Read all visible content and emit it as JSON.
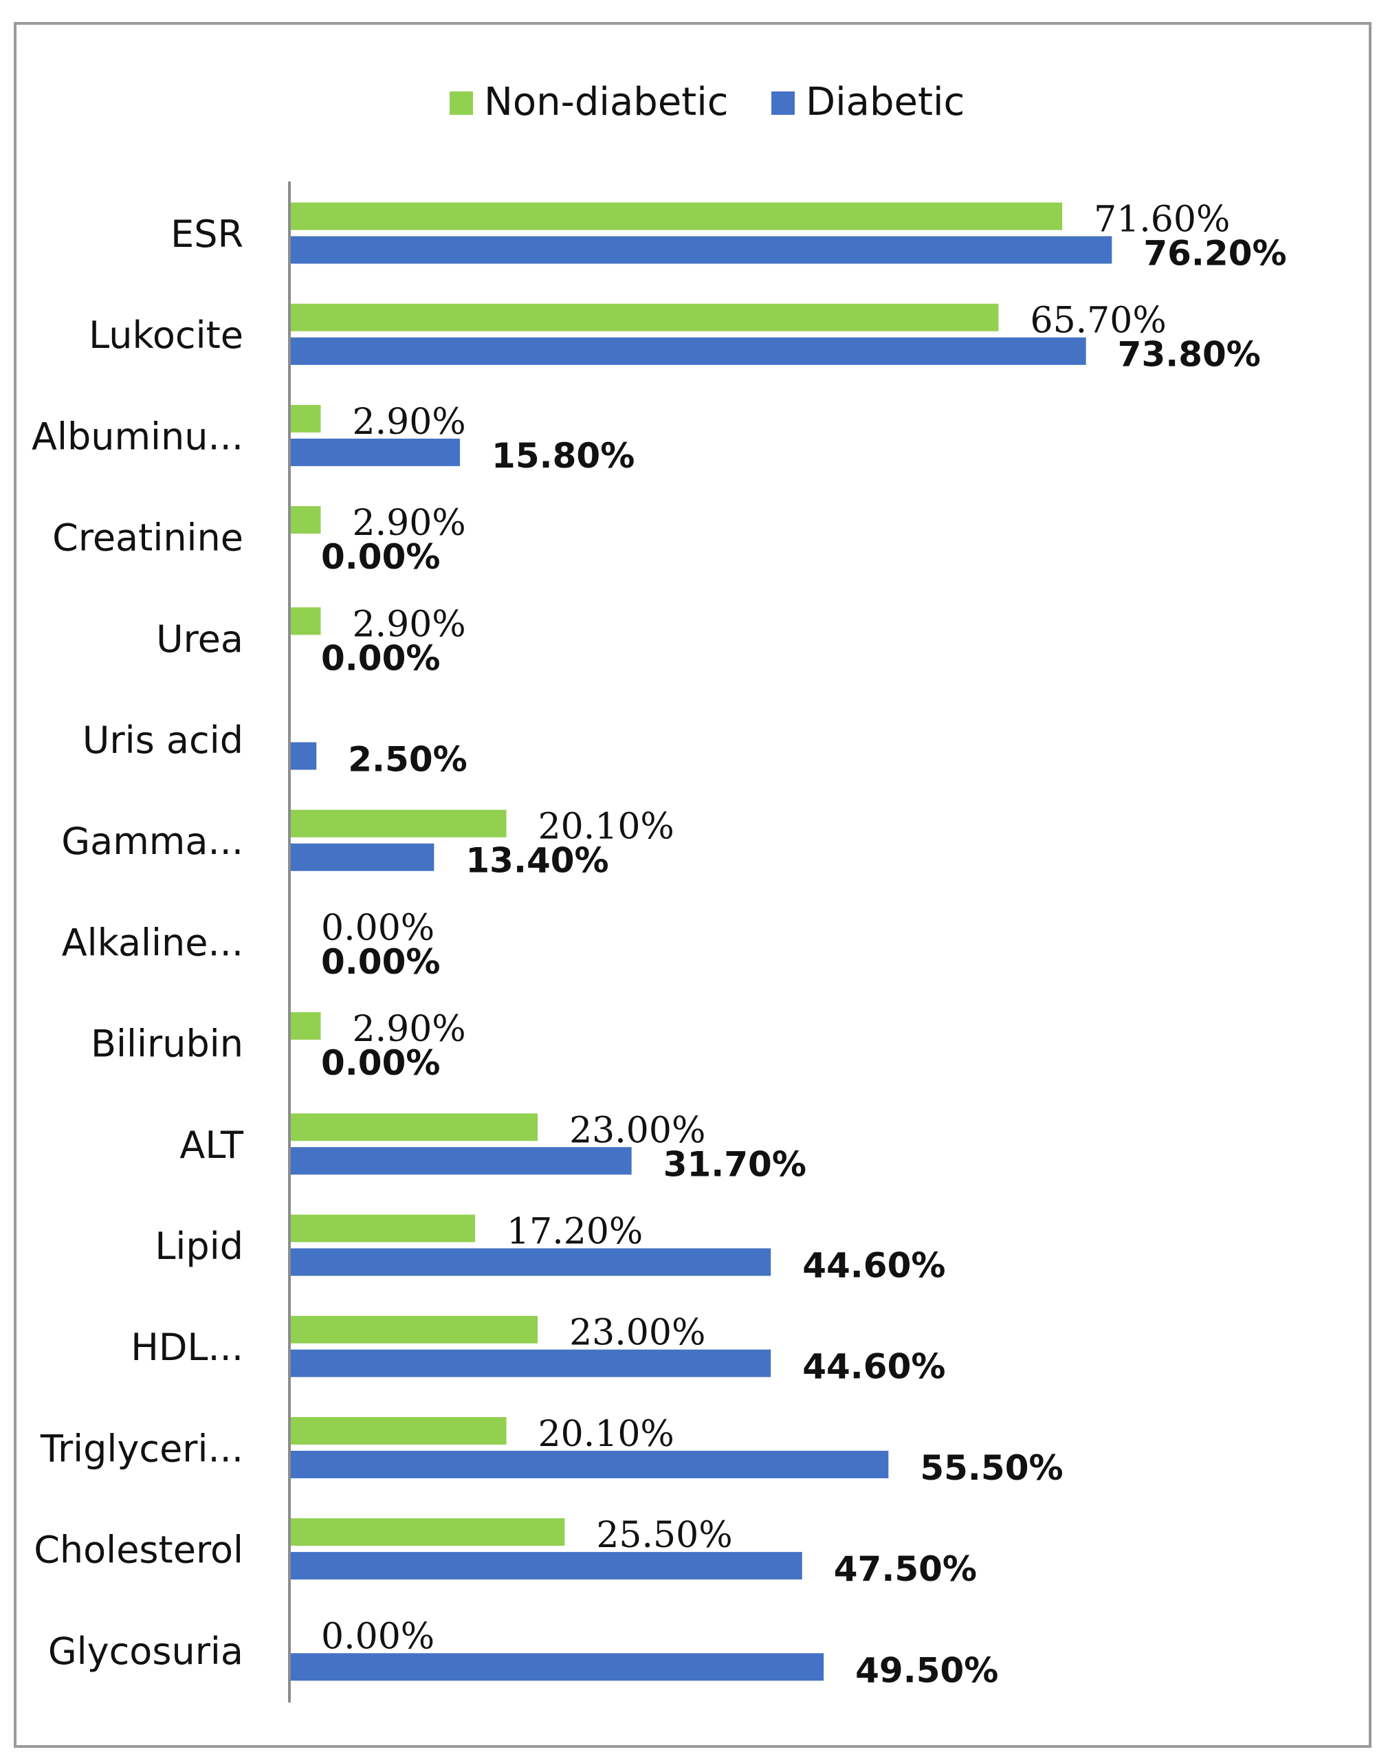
{
  "chart_data": {
    "type": "bar",
    "orientation": "horizontal",
    "categories": [
      "ESR",
      "Lukocite",
      "Albuminu...",
      "Creatinine",
      "Urea",
      "Uris acid",
      "Gamma...",
      "Alkaline...",
      "Bilirubin",
      "ALT",
      "Lipid",
      "HDL...",
      "Triglyceri...",
      "Cholesterol",
      "Glycosuria"
    ],
    "series": [
      {
        "name": "Non-diabetic",
        "color": "#92d050",
        "values": [
          71.6,
          65.7,
          2.9,
          2.9,
          2.9,
          null,
          20.1,
          0.0,
          2.9,
          23.0,
          17.2,
          23.0,
          20.1,
          25.5,
          0.0
        ],
        "labels": [
          "71.60%",
          "65.70%",
          "2.90%",
          "2.90%",
          "2.90%",
          "",
          "20.10%",
          "0.00%",
          "2.90%",
          "23.00%",
          "17.20%",
          "23.00%",
          "20.10%",
          "25.50%",
          "0.00%"
        ]
      },
      {
        "name": "Diabetic",
        "color": "#4472c4",
        "values": [
          76.2,
          73.8,
          15.8,
          0.0,
          0.0,
          2.5,
          13.4,
          0.0,
          0.0,
          31.7,
          44.6,
          44.6,
          55.5,
          47.5,
          49.5
        ],
        "labels": [
          "76.20%",
          "73.80%",
          "15.80%",
          "0.00%",
          "0.00%",
          "2.50%",
          "13.40%",
          "0.00%",
          "0.00%",
          "31.70%",
          "44.60%",
          "44.60%",
          "55.50%",
          "47.50%",
          "49.50%"
        ]
      }
    ],
    "title": "",
    "xlabel": "",
    "ylabel": "",
    "xlim": [
      0,
      100
    ],
    "legend_position": "top",
    "grid": false
  }
}
